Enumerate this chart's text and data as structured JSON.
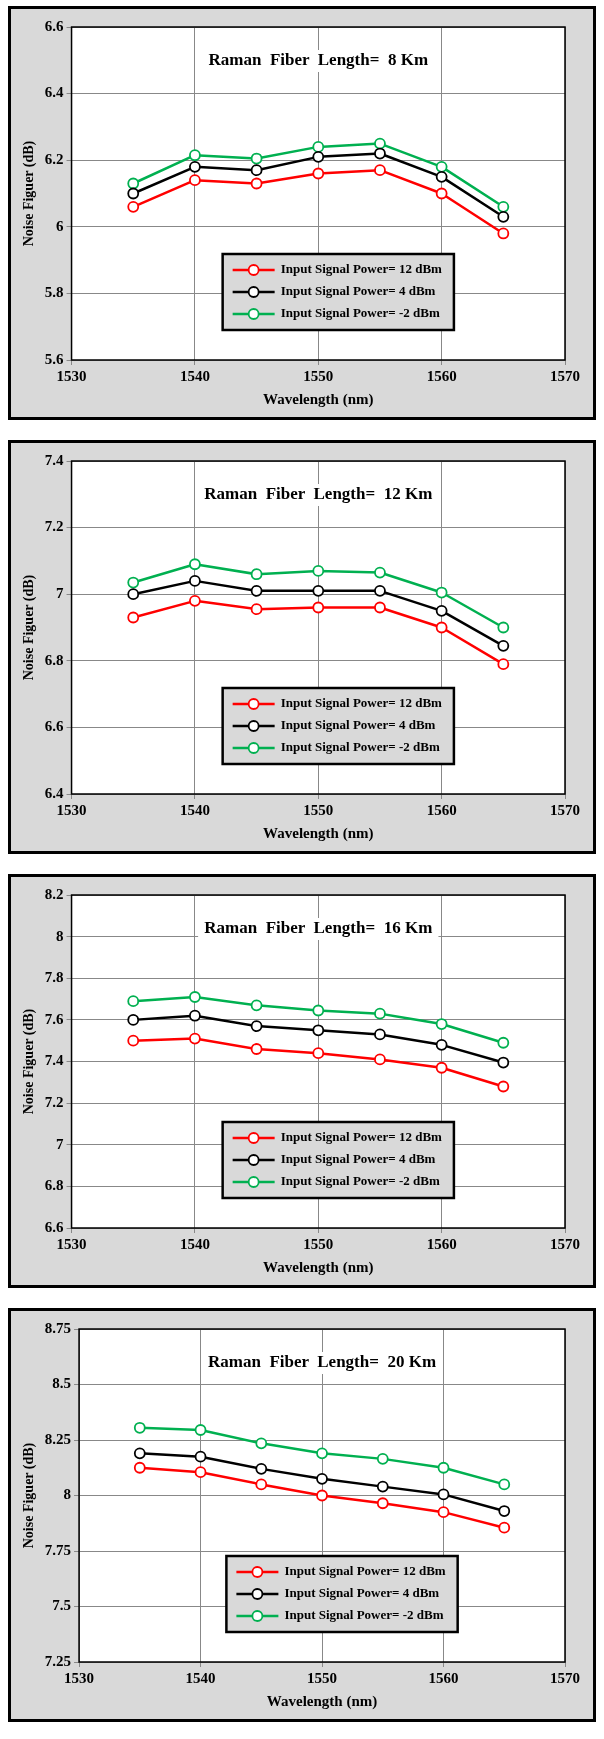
{
  "chart_data": [
    {
      "type": "line",
      "title": "Raman  Fiber  Length=  8 Km",
      "xlabel": "Wavelength (nm)",
      "ylabel": "Noise Figuer (dB)",
      "x": [
        1535,
        1540,
        1545,
        1550,
        1555,
        1560,
        1565
      ],
      "xlim": [
        1530,
        1570
      ],
      "xticks": [
        1530,
        1540,
        1550,
        1560,
        1570
      ],
      "ylim": [
        5.6,
        6.6
      ],
      "yticks": [
        5.6,
        5.8,
        6,
        6.2,
        6.4,
        6.6
      ],
      "grid": true,
      "legend": "bottom",
      "marker": "circle",
      "line_style": "solid",
      "series": [
        {
          "name": "Input Signal Power= 12 dBm",
          "color": "#ff0000",
          "values": [
            6.06,
            6.14,
            6.13,
            6.16,
            6.17,
            6.1,
            5.98
          ]
        },
        {
          "name": "Input Signal Power= 4 dBm",
          "color": "#000000",
          "values": [
            6.1,
            6.18,
            6.17,
            6.21,
            6.22,
            6.15,
            6.03
          ]
        },
        {
          "name": "Input Signal Power= -2 dBm",
          "color": "#00b050",
          "values": [
            6.13,
            6.215,
            6.205,
            6.24,
            6.25,
            6.18,
            6.06
          ]
        }
      ]
    },
    {
      "type": "line",
      "title": "Raman  Fiber  Length=  12 Km",
      "xlabel": "Wavelength (nm)",
      "ylabel": "Noise Figuer (dB)",
      "x": [
        1535,
        1540,
        1545,
        1550,
        1555,
        1560,
        1565
      ],
      "xlim": [
        1530,
        1570
      ],
      "xticks": [
        1530,
        1540,
        1550,
        1560,
        1570
      ],
      "ylim": [
        6.4,
        7.4
      ],
      "yticks": [
        6.4,
        6.6,
        6.8,
        7,
        7.2,
        7.4
      ],
      "grid": true,
      "legend": "bottom",
      "marker": "circle",
      "line_style": "solid",
      "series": [
        {
          "name": "Input Signal Power= 12 dBm",
          "color": "#ff0000",
          "values": [
            6.93,
            6.98,
            6.955,
            6.96,
            6.96,
            6.9,
            6.79
          ]
        },
        {
          "name": "Input Signal Power= 4 dBm",
          "color": "#000000",
          "values": [
            7,
            7.04,
            7.01,
            7.01,
            7.01,
            6.95,
            6.845
          ]
        },
        {
          "name": "Input Signal Power= -2 dBm",
          "color": "#00b050",
          "values": [
            7.035,
            7.09,
            7.06,
            7.07,
            7.065,
            7.005,
            6.9
          ]
        }
      ]
    },
    {
      "type": "line",
      "title": "Raman  Fiber  Length=  16 Km",
      "xlabel": "Wavelength (nm)",
      "ylabel": "Noise Figuer (dB)",
      "x": [
        1535,
        1540,
        1545,
        1550,
        1555,
        1560,
        1565
      ],
      "xlim": [
        1530,
        1570
      ],
      "xticks": [
        1530,
        1540,
        1550,
        1560,
        1570
      ],
      "ylim": [
        6.6,
        8.2
      ],
      "yticks": [
        6.6,
        6.8,
        7,
        7.2,
        7.4,
        7.6,
        7.8,
        8,
        8.2
      ],
      "grid": true,
      "legend": "bottom",
      "marker": "circle",
      "line_style": "solid",
      "series": [
        {
          "name": "Input Signal Power= 12 dBm",
          "color": "#ff0000",
          "values": [
            7.5,
            7.51,
            7.46,
            7.44,
            7.41,
            7.37,
            7.28
          ]
        },
        {
          "name": "Input Signal Power= 4 dBm",
          "color": "#000000",
          "values": [
            7.6,
            7.62,
            7.57,
            7.55,
            7.53,
            7.48,
            7.395
          ]
        },
        {
          "name": "Input Signal Power= -2 dBm",
          "color": "#00b050",
          "values": [
            7.69,
            7.71,
            7.67,
            7.645,
            7.63,
            7.58,
            7.49
          ]
        }
      ]
    },
    {
      "type": "line",
      "title": "Raman  Fiber  Length=  20 Km",
      "xlabel": "Wavelength (nm)",
      "ylabel": "Noise Figuer (dB)",
      "x": [
        1535,
        1540,
        1545,
        1550,
        1555,
        1560,
        1565
      ],
      "xlim": [
        1530,
        1570
      ],
      "xticks": [
        1530,
        1540,
        1550,
        1560,
        1570
      ],
      "ylim": [
        7.25,
        8.75
      ],
      "yticks": [
        7.25,
        7.5,
        7.75,
        8,
        8.25,
        8.5,
        8.75
      ],
      "grid": true,
      "legend": "bottom",
      "marker": "circle",
      "line_style": "solid",
      "series": [
        {
          "name": "Input Signal Power= 12 dBm",
          "color": "#ff0000",
          "values": [
            8.125,
            8.105,
            8.05,
            8,
            7.965,
            7.925,
            7.855
          ]
        },
        {
          "name": "Input Signal Power= 4 dBm",
          "color": "#000000",
          "values": [
            8.19,
            8.175,
            8.12,
            8.075,
            8.04,
            8.005,
            7.93
          ]
        },
        {
          "name": "Input Signal Power= -2 dBm",
          "color": "#00b050",
          "values": [
            8.305,
            8.295,
            8.235,
            8.19,
            8.165,
            8.125,
            8.05
          ]
        }
      ]
    }
  ]
}
